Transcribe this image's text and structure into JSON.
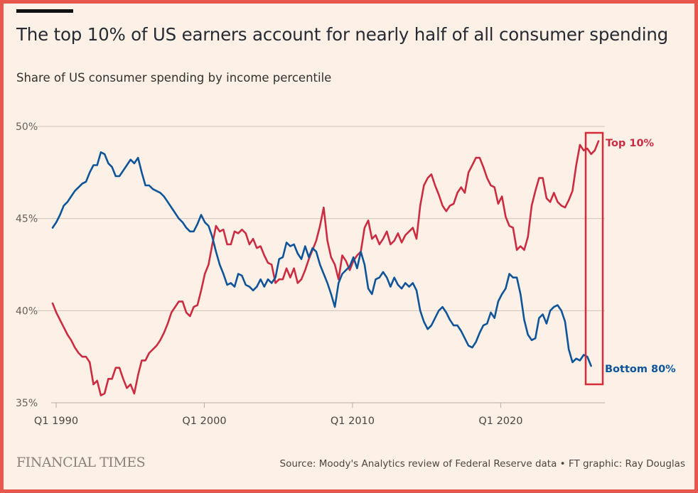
{
  "header": {
    "title": "The top 10% of US earners account for nearly half of all consumer spending",
    "subtitle": "Share of US consumer spending by income percentile"
  },
  "footer": {
    "logo": "FINANCIAL TIMES",
    "source": "Source: Moody's Analytics review of Federal Reserve data • FT graphic: Ray Douglas"
  },
  "colors": {
    "top10": "#cc2c41",
    "bottom80": "#0f5499",
    "highlight_box": "#d62a36",
    "background": "#fdf0e6",
    "frame": "#e8574c"
  },
  "chart_data": {
    "type": "line",
    "title": "The top 10% of US earners account for nearly half of all consumer spending",
    "subtitle": "Share of US consumer spending by income percentile",
    "xlabel": "",
    "ylabel": "",
    "x_start": "Q1 1990",
    "x_end": "Q2 2025",
    "frequency": "quarterly",
    "ylim": [
      35,
      50
    ],
    "yticks": [
      50,
      45,
      40,
      35
    ],
    "ytick_labels": [
      "50%",
      "45%",
      "40%",
      "35%"
    ],
    "xticks": [
      {
        "index": 0,
        "label": "Q1 1990"
      },
      {
        "index": 40,
        "label": "Q1 2000"
      },
      {
        "index": 80,
        "label": "Q1 2010"
      },
      {
        "index": 120,
        "label": "Q1 2020"
      }
    ],
    "grid": true,
    "legend": "direct-labels-right",
    "highlight": {
      "from_index": 138,
      "to_index": 141,
      "description": "red box around latest quarters"
    },
    "series": [
      {
        "name": "Top 10%",
        "label": "Top 10%",
        "color": "#cc2c41",
        "values": [
          40.4,
          39.9,
          39.5,
          39.1,
          38.7,
          38.4,
          38.0,
          37.7,
          37.5,
          37.5,
          37.2,
          36.0,
          36.2,
          35.4,
          35.5,
          36.3,
          36.3,
          36.9,
          36.9,
          36.3,
          35.8,
          36.0,
          35.5,
          36.5,
          37.3,
          37.3,
          37.7,
          37.9,
          38.1,
          38.4,
          38.8,
          39.3,
          39.9,
          40.2,
          40.5,
          40.5,
          39.9,
          39.7,
          40.2,
          40.3,
          41.1,
          42.0,
          42.5,
          43.6,
          44.6,
          44.3,
          44.4,
          43.6,
          43.6,
          44.3,
          44.2,
          44.4,
          44.2,
          43.6,
          43.9,
          43.4,
          43.5,
          43.0,
          42.6,
          42.5,
          41.5,
          41.7,
          41.7,
          42.3,
          41.8,
          42.3,
          41.5,
          41.7,
          42.2,
          42.8,
          43.3,
          43.8,
          44.6,
          45.6,
          43.8,
          42.9,
          42.5,
          41.7,
          43.0,
          42.7,
          42.2,
          42.7,
          43.0,
          43.2,
          44.5,
          44.9,
          43.9,
          44.1,
          43.6,
          43.9,
          44.3,
          43.6,
          43.8,
          44.2,
          43.7,
          44.1,
          44.3,
          44.5,
          43.9,
          45.7,
          46.8,
          47.2,
          47.4,
          46.8,
          46.3,
          45.7,
          45.4,
          45.7,
          45.8,
          46.4,
          46.7,
          46.4,
          47.5,
          47.9,
          48.3,
          48.3,
          47.8,
          47.2,
          46.8,
          46.7,
          45.8,
          46.2,
          45.1,
          44.6,
          44.5,
          43.3,
          43.5,
          43.3,
          44.0,
          45.7,
          46.5,
          47.2,
          47.2,
          46.1,
          45.9,
          46.4,
          45.9,
          45.7,
          45.6,
          46.0,
          46.5,
          47.9,
          49.0,
          48.7,
          48.8,
          48.5,
          48.7,
          49.2
        ]
      },
      {
        "name": "Bottom 80%",
        "label": "Bottom 80%",
        "color": "#0f5499",
        "values": [
          44.5,
          44.8,
          45.2,
          45.7,
          45.9,
          46.2,
          46.5,
          46.7,
          46.9,
          47.0,
          47.5,
          47.9,
          47.9,
          48.6,
          48.5,
          48.0,
          47.8,
          47.3,
          47.3,
          47.6,
          47.9,
          48.2,
          48.0,
          48.3,
          47.5,
          46.8,
          46.8,
          46.6,
          46.5,
          46.4,
          46.2,
          45.9,
          45.6,
          45.3,
          45.0,
          44.8,
          44.5,
          44.3,
          44.3,
          44.7,
          45.2,
          44.8,
          44.6,
          44.0,
          43.2,
          42.5,
          42.0,
          41.4,
          41.5,
          41.3,
          42.0,
          41.9,
          41.4,
          41.3,
          41.1,
          41.3,
          41.7,
          41.3,
          41.7,
          41.5,
          41.8,
          42.8,
          42.9,
          43.7,
          43.5,
          43.6,
          43.1,
          42.8,
          43.5,
          42.9,
          43.4,
          43.2,
          42.5,
          42.0,
          41.5,
          40.9,
          40.2,
          41.5,
          42.0,
          42.2,
          42.4,
          42.9,
          42.3,
          43.2,
          42.5,
          41.2,
          40.9,
          41.7,
          41.8,
          42.1,
          41.8,
          41.3,
          41.8,
          41.4,
          41.2,
          41.5,
          41.3,
          41.5,
          41.1,
          40.0,
          39.4,
          39.0,
          39.2,
          39.6,
          40.0,
          40.2,
          39.9,
          39.5,
          39.2,
          39.2,
          38.9,
          38.5,
          38.1,
          38.0,
          38.3,
          38.8,
          39.2,
          39.3,
          39.9,
          39.6,
          40.5,
          40.9,
          41.2,
          42.0,
          41.8,
          41.8,
          40.9,
          39.5,
          38.7,
          38.4,
          38.5,
          39.6,
          39.8,
          39.3,
          40.0,
          40.2,
          40.3,
          40.0,
          39.4,
          37.9,
          37.2,
          37.4,
          37.3,
          37.6,
          37.5,
          37.0
        ]
      }
    ]
  }
}
